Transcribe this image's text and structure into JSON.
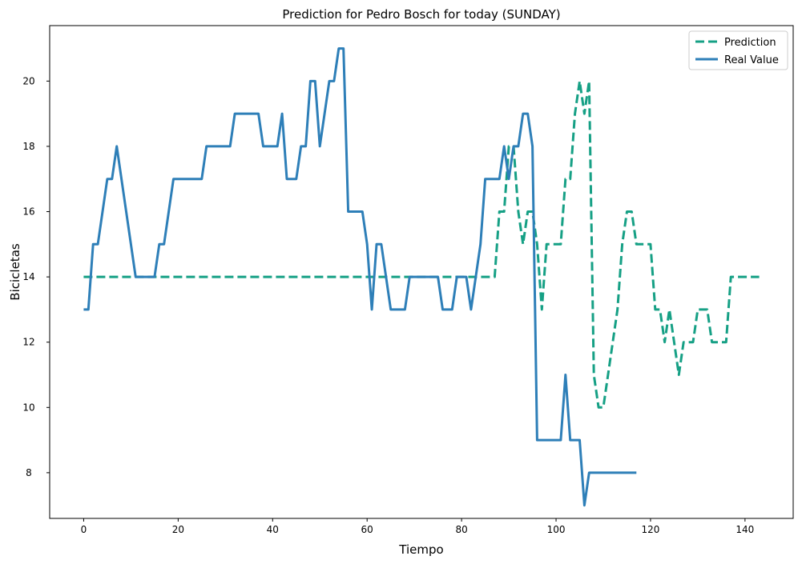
{
  "chart_data": {
    "type": "line",
    "title": "Prediction for Pedro Bosch for today (SUNDAY)",
    "xlabel": "Tiempo",
    "ylabel": "Bicicletas",
    "xlim": [
      -7.2,
      150.2
    ],
    "ylim": [
      6.6,
      21.7
    ],
    "xticks": [
      0,
      20,
      40,
      60,
      80,
      100,
      120,
      140
    ],
    "yticks": [
      8,
      10,
      12,
      14,
      16,
      18,
      20
    ],
    "grid": false,
    "legend_position": "top-right",
    "series": [
      {
        "name": "Prediction",
        "color": "#16a085",
        "style": "dashed",
        "points": [
          [
            0,
            14
          ],
          [
            87,
            14
          ],
          [
            88,
            16
          ],
          [
            89,
            16
          ],
          [
            90,
            18
          ],
          [
            91,
            18
          ],
          [
            92,
            16
          ],
          [
            93,
            15
          ],
          [
            94,
            16
          ],
          [
            95,
            16
          ],
          [
            96,
            15
          ],
          [
            97,
            13
          ],
          [
            98,
            15
          ],
          [
            99,
            15
          ],
          [
            100,
            15
          ],
          [
            101,
            15
          ],
          [
            102,
            17
          ],
          [
            103,
            17
          ],
          [
            104,
            19
          ],
          [
            105,
            20
          ],
          [
            106,
            19
          ],
          [
            107,
            20
          ],
          [
            108,
            11
          ],
          [
            109,
            10
          ],
          [
            110,
            10
          ],
          [
            111,
            11
          ],
          [
            112,
            12
          ],
          [
            113,
            13
          ],
          [
            114,
            15
          ],
          [
            115,
            16
          ],
          [
            116,
            16
          ],
          [
            117,
            15
          ],
          [
            118,
            15
          ],
          [
            119,
            15
          ],
          [
            120,
            15
          ],
          [
            121,
            13
          ],
          [
            122,
            13
          ],
          [
            123,
            12
          ],
          [
            124,
            13
          ],
          [
            125,
            12
          ],
          [
            126,
            11
          ],
          [
            127,
            12
          ],
          [
            128,
            12
          ],
          [
            129,
            12
          ],
          [
            130,
            13
          ],
          [
            131,
            13
          ],
          [
            132,
            13
          ],
          [
            133,
            12
          ],
          [
            134,
            12
          ],
          [
            135,
            12
          ],
          [
            136,
            12
          ],
          [
            137,
            14
          ],
          [
            143,
            14
          ]
        ]
      },
      {
        "name": "Real Value",
        "color": "#2e7fb8",
        "style": "solid",
        "points": [
          [
            0,
            13
          ],
          [
            1,
            13
          ],
          [
            2,
            15
          ],
          [
            3,
            15
          ],
          [
            4,
            16
          ],
          [
            5,
            17
          ],
          [
            6,
            17
          ],
          [
            7,
            18
          ],
          [
            8,
            17
          ],
          [
            9,
            16
          ],
          [
            10,
            15
          ],
          [
            11,
            14
          ],
          [
            12,
            14
          ],
          [
            13,
            14
          ],
          [
            14,
            14
          ],
          [
            15,
            14
          ],
          [
            16,
            15
          ],
          [
            17,
            15
          ],
          [
            18,
            16
          ],
          [
            19,
            17
          ],
          [
            20,
            17
          ],
          [
            21,
            17
          ],
          [
            22,
            17
          ],
          [
            23,
            17
          ],
          [
            24,
            17
          ],
          [
            25,
            17
          ],
          [
            26,
            18
          ],
          [
            27,
            18
          ],
          [
            28,
            18
          ],
          [
            29,
            18
          ],
          [
            30,
            18
          ],
          [
            31,
            18
          ],
          [
            32,
            19
          ],
          [
            33,
            19
          ],
          [
            34,
            19
          ],
          [
            35,
            19
          ],
          [
            36,
            19
          ],
          [
            37,
            19
          ],
          [
            38,
            18
          ],
          [
            39,
            18
          ],
          [
            40,
            18
          ],
          [
            41,
            18
          ],
          [
            42,
            19
          ],
          [
            43,
            17
          ],
          [
            44,
            17
          ],
          [
            45,
            17
          ],
          [
            46,
            18
          ],
          [
            47,
            18
          ],
          [
            48,
            20
          ],
          [
            49,
            20
          ],
          [
            50,
            18
          ],
          [
            51,
            19
          ],
          [
            52,
            20
          ],
          [
            53,
            20
          ],
          [
            54,
            21
          ],
          [
            55,
            21
          ],
          [
            56,
            16
          ],
          [
            57,
            16
          ],
          [
            58,
            16
          ],
          [
            59,
            16
          ],
          [
            60,
            15
          ],
          [
            61,
            13
          ],
          [
            62,
            15
          ],
          [
            63,
            15
          ],
          [
            64,
            14
          ],
          [
            65,
            13
          ],
          [
            66,
            13
          ],
          [
            67,
            13
          ],
          [
            68,
            13
          ],
          [
            69,
            14
          ],
          [
            70,
            14
          ],
          [
            71,
            14
          ],
          [
            72,
            14
          ],
          [
            73,
            14
          ],
          [
            74,
            14
          ],
          [
            75,
            14
          ],
          [
            76,
            13
          ],
          [
            77,
            13
          ],
          [
            78,
            13
          ],
          [
            79,
            14
          ],
          [
            80,
            14
          ],
          [
            81,
            14
          ],
          [
            82,
            13
          ],
          [
            83,
            14
          ],
          [
            84,
            15
          ],
          [
            85,
            17
          ],
          [
            86,
            17
          ],
          [
            87,
            17
          ],
          [
            88,
            17
          ],
          [
            89,
            18
          ],
          [
            90,
            17
          ],
          [
            91,
            18
          ],
          [
            92,
            18
          ],
          [
            93,
            19
          ],
          [
            94,
            19
          ],
          [
            95,
            18
          ],
          [
            96,
            9
          ],
          [
            97,
            9
          ],
          [
            98,
            9
          ],
          [
            99,
            9
          ],
          [
            100,
            9
          ],
          [
            101,
            9
          ],
          [
            102,
            11
          ],
          [
            103,
            9
          ],
          [
            104,
            9
          ],
          [
            105,
            9
          ],
          [
            106,
            7
          ],
          [
            107,
            8
          ],
          [
            108,
            8
          ],
          [
            109,
            8
          ],
          [
            110,
            8
          ],
          [
            111,
            8
          ],
          [
            112,
            8
          ],
          [
            113,
            8
          ],
          [
            114,
            8
          ],
          [
            115,
            8
          ],
          [
            116,
            8
          ],
          [
            117,
            8
          ]
        ]
      }
    ]
  }
}
